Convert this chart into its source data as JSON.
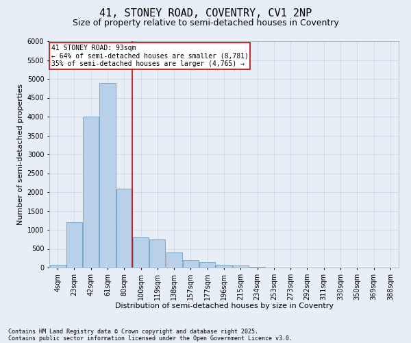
{
  "title1": "41, STONEY ROAD, COVENTRY, CV1 2NP",
  "title2": "Size of property relative to semi-detached houses in Coventry",
  "xlabel": "Distribution of semi-detached houses by size in Coventry",
  "ylabel": "Number of semi-detached properties",
  "categories": [
    "4sqm",
    "23sqm",
    "42sqm",
    "61sqm",
    "80sqm",
    "100sqm",
    "119sqm",
    "138sqm",
    "157sqm",
    "177sqm",
    "196sqm",
    "215sqm",
    "234sqm",
    "253sqm",
    "273sqm",
    "292sqm",
    "311sqm",
    "330sqm",
    "350sqm",
    "369sqm",
    "388sqm"
  ],
  "values": [
    75,
    1200,
    4000,
    4900,
    2100,
    800,
    750,
    400,
    200,
    150,
    75,
    50,
    10,
    2,
    1,
    1,
    0,
    0,
    0,
    0,
    0
  ],
  "bar_color": "#b8d0e8",
  "bar_edge_color": "#6a9fc8",
  "vline_color": "#cc0000",
  "vline_x": 4.5,
  "grid_color": "#c8d4e4",
  "background_color": "#e8eef6",
  "ylim": [
    0,
    6000
  ],
  "yticks": [
    0,
    500,
    1000,
    1500,
    2000,
    2500,
    3000,
    3500,
    4000,
    4500,
    5000,
    5500,
    6000
  ],
  "annotation_title": "41 STONEY ROAD: 93sqm",
  "annotation_line1": "← 64% of semi-detached houses are smaller (8,781)",
  "annotation_line2": "35% of semi-detached houses are larger (4,765) →",
  "annotation_box_facecolor": "#ffffff",
  "annotation_box_edgecolor": "#cc0000",
  "footer1": "Contains HM Land Registry data © Crown copyright and database right 2025.",
  "footer2": "Contains public sector information licensed under the Open Government Licence v3.0.",
  "title1_fontsize": 11,
  "title2_fontsize": 9,
  "tick_fontsize": 7,
  "ylabel_fontsize": 8,
  "xlabel_fontsize": 8,
  "annot_fontsize": 7,
  "footer_fontsize": 6
}
